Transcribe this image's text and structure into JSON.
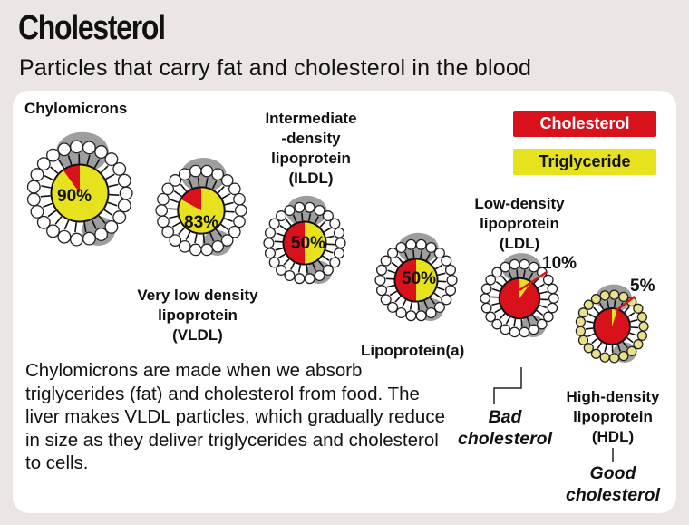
{
  "title": "Cholesterol",
  "subtitle": "Particles that carry fat and cholesterol in the blood",
  "legend": {
    "cholesterol": "Cholesterol",
    "triglyceride": "Triglyceride"
  },
  "colors": {
    "cholesterol": "#d9111b",
    "triglyceride": "#e6e21d",
    "background": "#ebe6e3",
    "panel": "#ffffff"
  },
  "particles": {
    "chylomicrons": {
      "label": "Chylomicrons",
      "percent_label": "90%",
      "triglyceride_percent": 90
    },
    "vldl": {
      "label_line1": "Very low density",
      "label_line2": "lipoprotein",
      "label_line3": "(VLDL)",
      "percent_label": "83%",
      "triglyceride_percent": 83
    },
    "ildl": {
      "label_line1": "Intermediate",
      "label_line2": "-density",
      "label_line3": "lipoprotein",
      "label_line4": "(ILDL)",
      "percent_label": "50%",
      "triglyceride_percent": 50
    },
    "lpa": {
      "label": "Lipoprotein(a)",
      "percent_label": "50%",
      "triglyceride_percent": 50
    },
    "ldl": {
      "label_line1": "Low-density",
      "label_line2": "lipoprotein",
      "label_line3": "(LDL)",
      "percent_label": "10%",
      "triglyceride_percent": 10
    },
    "hdl": {
      "label_line1": "High-density",
      "label_line2": "lipoprotein",
      "label_line3": "(HDL)",
      "percent_label": "5%",
      "triglyceride_percent": 5
    }
  },
  "bad_label": {
    "line1": "Bad",
    "line2": "cholesterol"
  },
  "good_label": {
    "line1": "Good",
    "line2": "cholesterol"
  },
  "description": "Chylomicrons are made when we absorb triglycerides (fat) and cholesterol from food. The liver makes VLDL particles, which gradually reduce in size as they deliver triglycerides and cholesterol to cells."
}
